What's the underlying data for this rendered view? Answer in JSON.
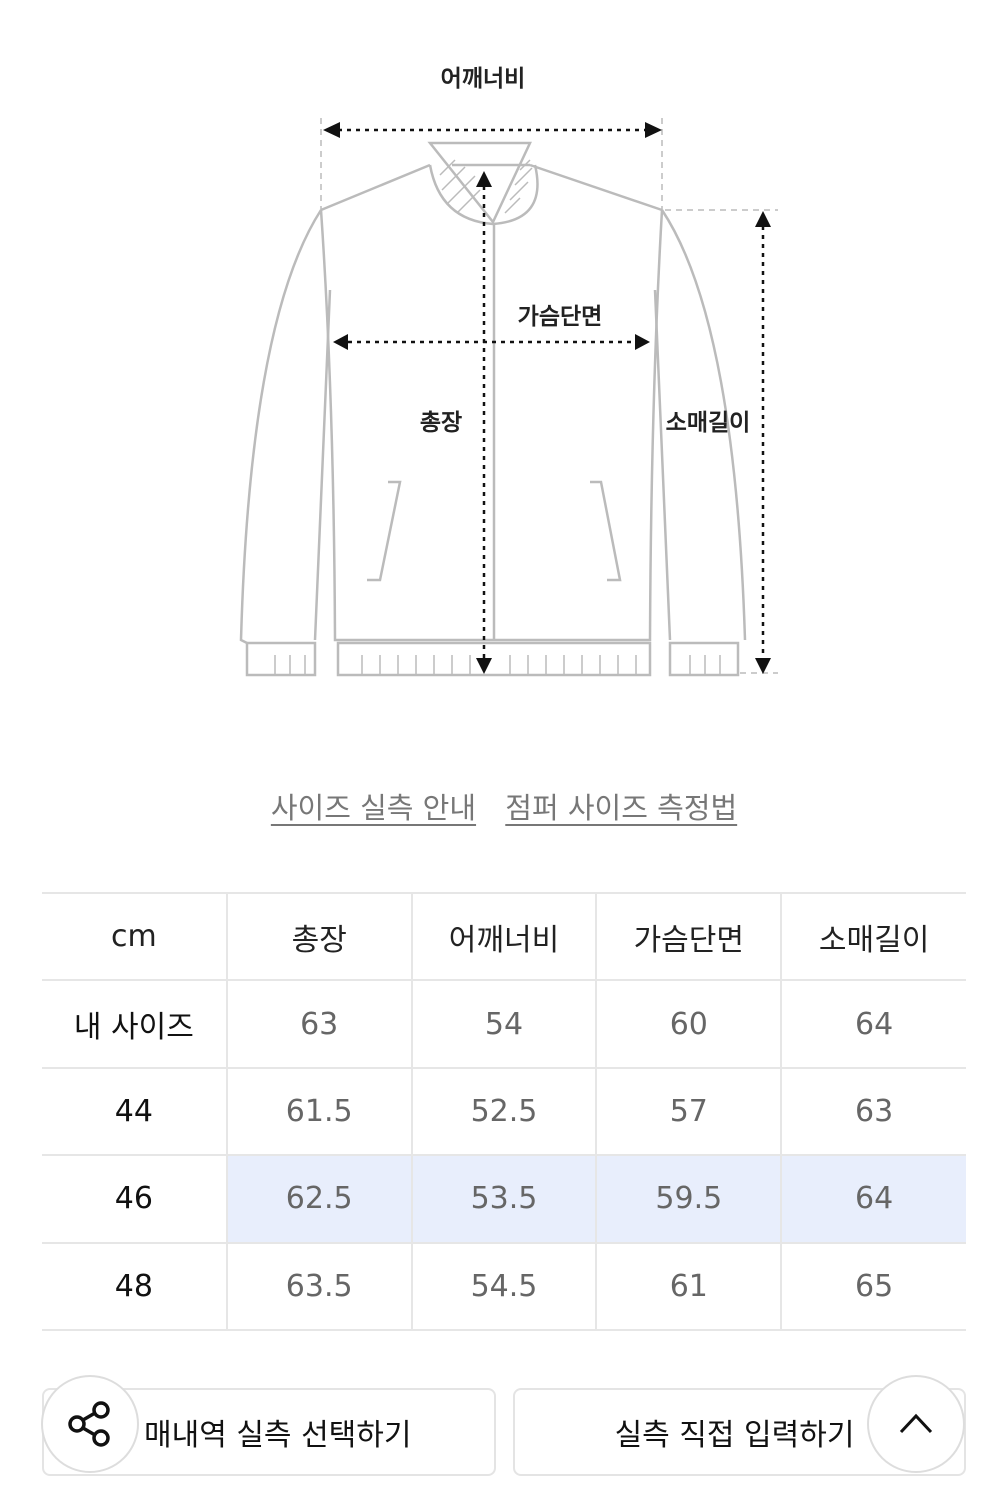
{
  "diagram": {
    "labels": {
      "shoulder": "어깨너비",
      "chest": "가슴단면",
      "length": "총장",
      "sleeve": "소매길이"
    }
  },
  "links": [
    "사이즈 실측 안내",
    "점퍼 사이즈 측정법"
  ],
  "table": {
    "headers": [
      "cm",
      "총장",
      "어깨너비",
      "가슴단면",
      "소매길이"
    ],
    "rows": [
      {
        "label": "내 사이즈",
        "values": [
          "63",
          "54",
          "60",
          "64"
        ]
      },
      {
        "label": "44",
        "values": [
          "61.5",
          "52.5",
          "57",
          "63"
        ]
      },
      {
        "label": "46",
        "values": [
          "62.5",
          "53.5",
          "59.5",
          "64"
        ],
        "highlighted": true
      },
      {
        "label": "48",
        "values": [
          "63.5",
          "54.5",
          "61",
          "65"
        ]
      }
    ],
    "highlight_color": "#e8eefc"
  },
  "buttons": {
    "left": "매내역 실측 선택하기",
    "right": "실측 직접 입력하기"
  },
  "icons": {
    "share": "share-icon",
    "top": "chevron-up-icon"
  }
}
